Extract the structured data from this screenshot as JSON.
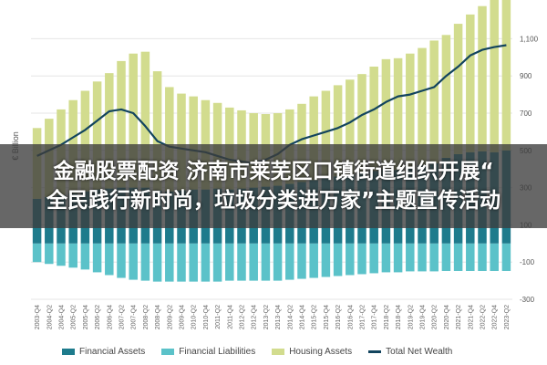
{
  "chart_data": {
    "type": "bar",
    "ylabel": "€ Billion",
    "ylim": [
      -300,
      1200
    ],
    "yticks": [
      -300,
      -100,
      100,
      300,
      500,
      700,
      900,
      1100
    ],
    "ytick_labels": [
      "-300",
      "-100",
      "100",
      "300",
      "500",
      "700",
      "900",
      "1,100"
    ],
    "x": [
      "2003-Q4",
      "2004-Q2",
      "2004-Q4",
      "2005-Q2",
      "2005-Q4",
      "2006-Q2",
      "2006-Q4",
      "2007-Q2",
      "2007-Q4",
      "2008-Q2",
      "2008-Q4",
      "2009-Q2",
      "2009-Q4",
      "2010-Q2",
      "2010-Q4",
      "2011-Q2",
      "2011-Q4",
      "2012-Q2",
      "2012-Q4",
      "2013-Q2",
      "2013-Q4",
      "2014-Q2",
      "2014-Q4",
      "2015-Q2",
      "2015-Q4",
      "2016-Q2",
      "2016-Q4",
      "2017-Q2",
      "2017-Q4",
      "2018-Q2",
      "2018-Q4",
      "2019-Q2",
      "2019-Q4",
      "2020-Q2",
      "2020-Q4",
      "2021-Q2",
      "2021-Q4",
      "2022-Q2",
      "2022-Q4",
      "2023-Q2"
    ],
    "series": [
      {
        "name": "Financial Assets",
        "color": "#1e7b8c",
        "values": [
          240,
          250,
          260,
          270,
          280,
          290,
          295,
          300,
          300,
          300,
          285,
          280,
          285,
          290,
          290,
          295,
          290,
          295,
          300,
          305,
          310,
          320,
          330,
          340,
          350,
          360,
          370,
          380,
          390,
          400,
          395,
          410,
          420,
          430,
          460,
          480,
          490,
          495,
          490,
          500
        ]
      },
      {
        "name": "Financial Liabilities",
        "color": "#5bc2c9",
        "values": [
          -100,
          -110,
          -120,
          -130,
          -140,
          -155,
          -170,
          -185,
          -195,
          -200,
          -205,
          -205,
          -205,
          -205,
          -205,
          -205,
          -200,
          -200,
          -200,
          -200,
          -200,
          -195,
          -190,
          -185,
          -180,
          -175,
          -170,
          -165,
          -160,
          -155,
          -155,
          -150,
          -150,
          -150,
          -148,
          -148,
          -148,
          -148,
          -148,
          -148
        ]
      },
      {
        "name": "Housing Assets",
        "color": "#d2dc8e",
        "values": [
          380,
          420,
          460,
          500,
          540,
          580,
          620,
          680,
          720,
          730,
          640,
          560,
          520,
          500,
          480,
          460,
          440,
          420,
          400,
          390,
          390,
          400,
          420,
          450,
          470,
          490,
          510,
          530,
          560,
          590,
          600,
          610,
          630,
          660,
          660,
          700,
          740,
          780,
          850,
          890
        ]
      },
      {
        "name": "Total Net Wealth",
        "color": "#12445e",
        "type": "line",
        "values": [
          470,
          500,
          530,
          570,
          610,
          660,
          710,
          720,
          700,
          630,
          550,
          520,
          510,
          500,
          490,
          470,
          450,
          440,
          430,
          450,
          480,
          530,
          560,
          580,
          600,
          620,
          650,
          690,
          720,
          760,
          790,
          800,
          820,
          840,
          900,
          950,
          1010,
          1040,
          1055,
          1065
        ]
      }
    ],
    "legend_position": "bottom",
    "grid": true
  },
  "overlay": {
    "line1": "金融股票配资 济南市莱芜区口镇街道组织开展“",
    "line2": "全民践行新时尚，垃圾分类进万家”主题宣传活动"
  }
}
